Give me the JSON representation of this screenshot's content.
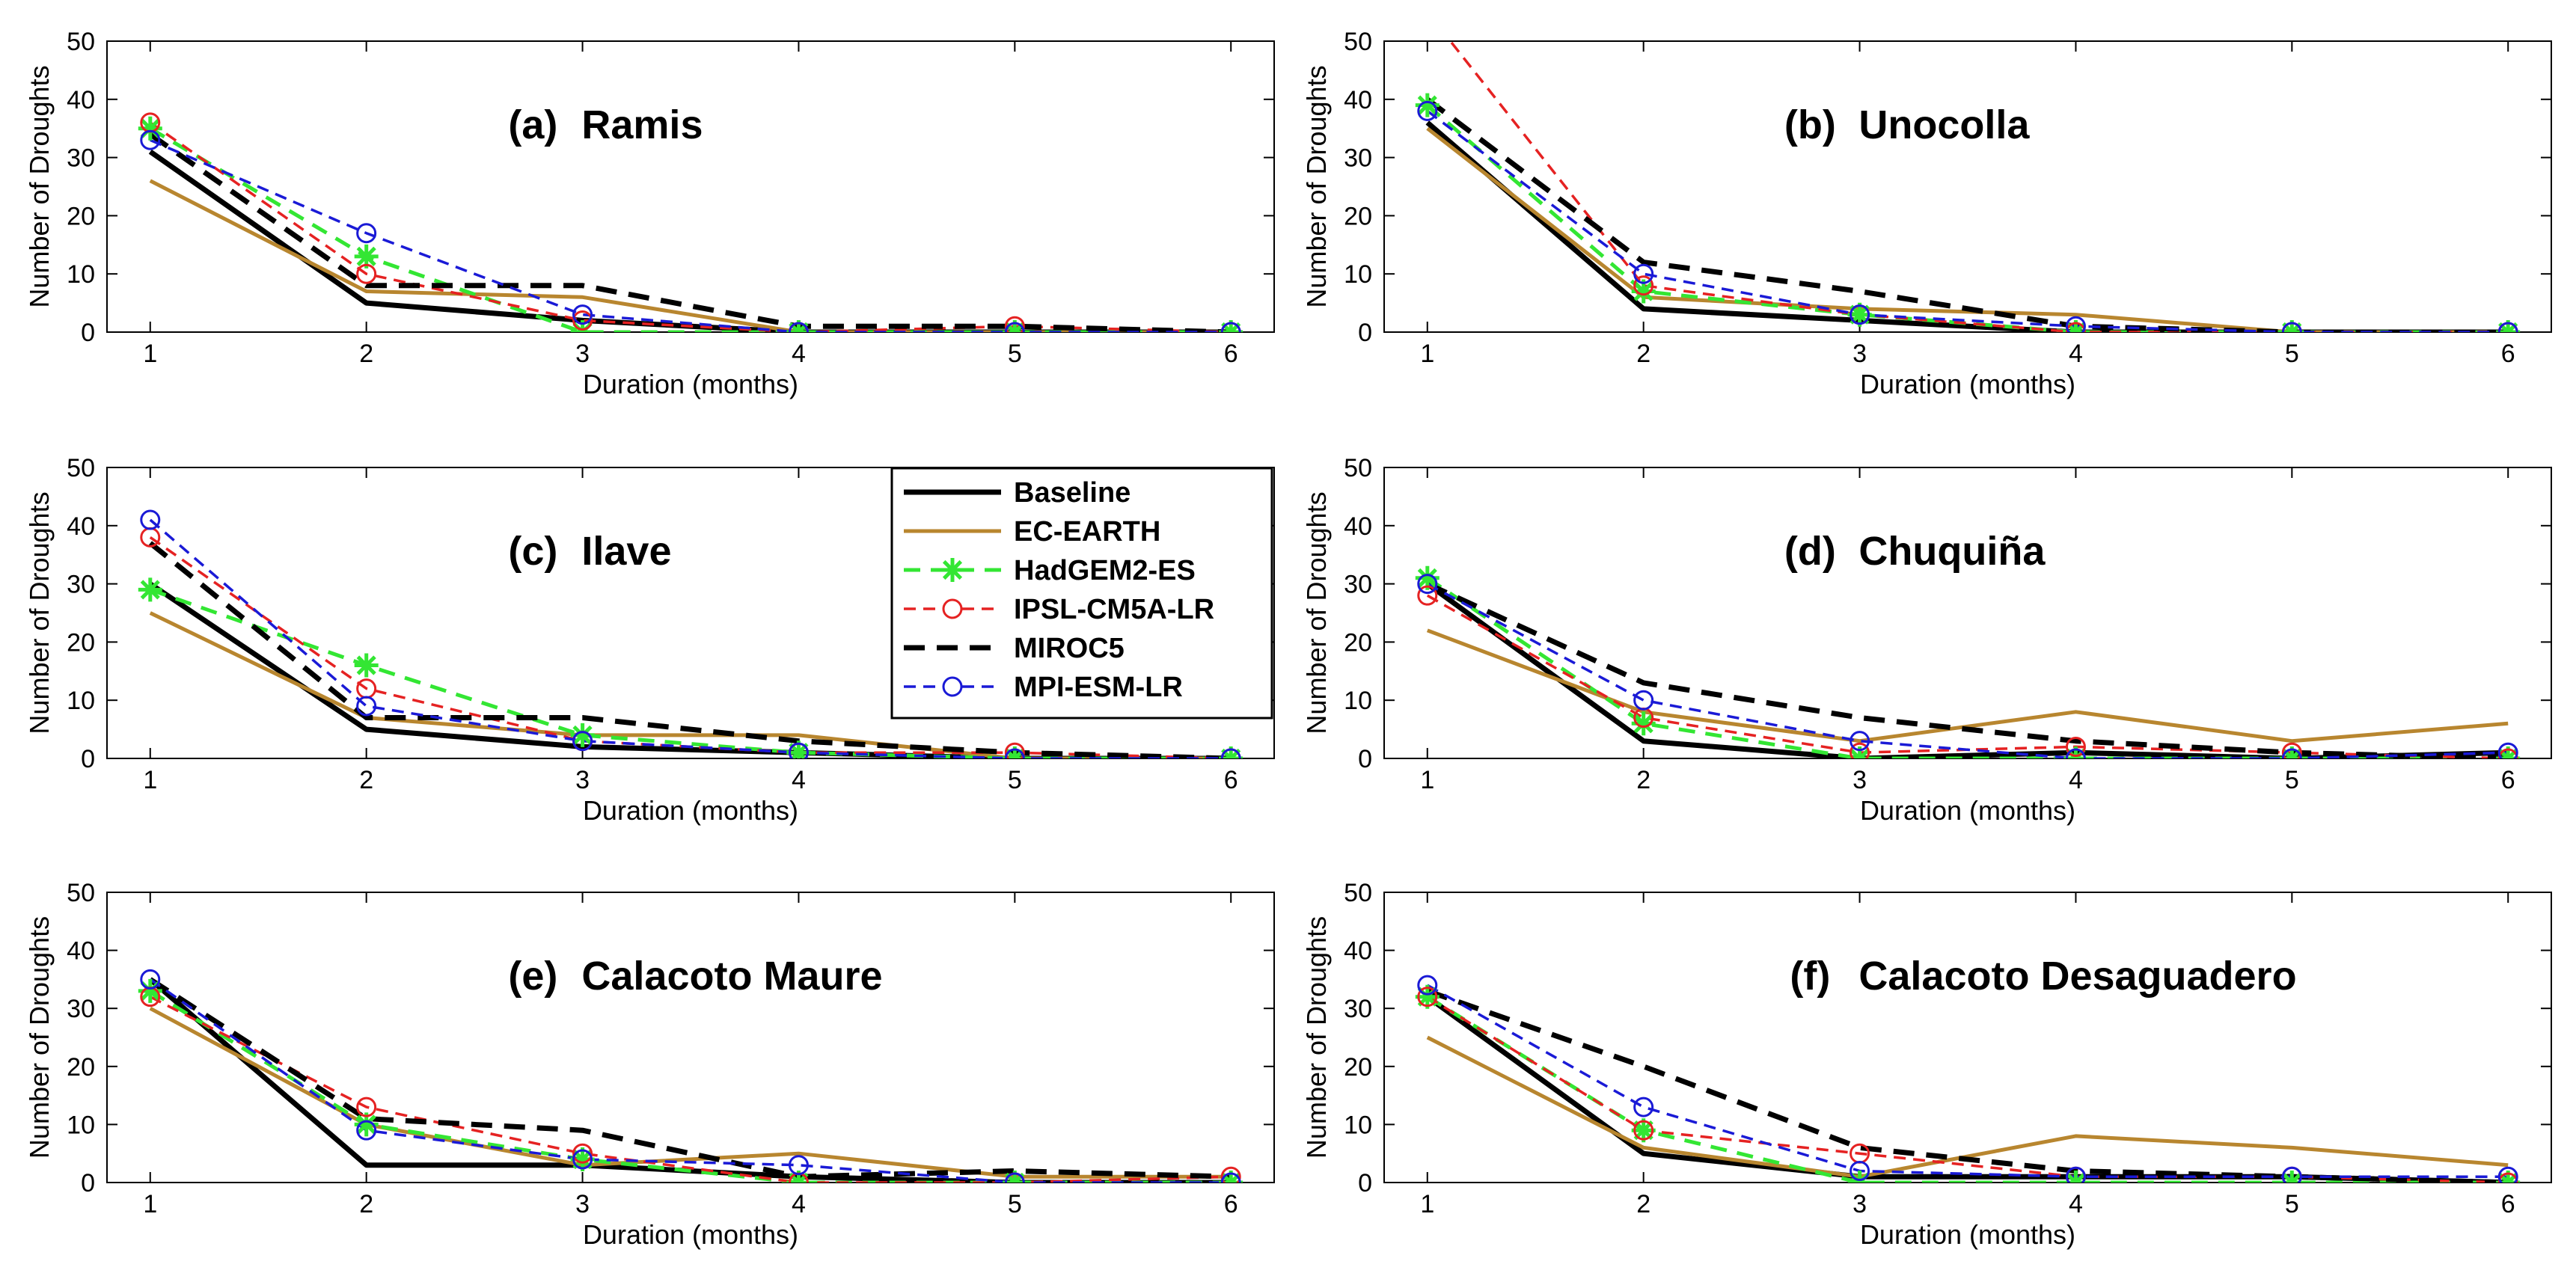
{
  "figure": {
    "legend_panel": 2,
    "legend_position": "top-right of panel (c)",
    "styles": {
      "Baseline": {
        "color": "#000000",
        "dash": "",
        "marker": "none",
        "width": 7
      },
      "EC-EARTH": {
        "color": "#b8862f",
        "dash": "",
        "marker": "none",
        "width": 5
      },
      "HadGEM2-ES": {
        "color": "#33e633",
        "dash": "22,14",
        "marker": "star",
        "width": 5
      },
      "IPSL-CM5A-LR": {
        "color": "#e52222",
        "dash": "16,10",
        "marker": "circle",
        "width": 3.5
      },
      "MIROC5": {
        "color": "#000000",
        "dash": "28,16",
        "marker": "none",
        "width": 7
      },
      "MPI-ESM-LR": {
        "color": "#1a1ad6",
        "dash": "16,10",
        "marker": "circle",
        "width": 3.5
      }
    }
  },
  "chart_data": [
    {
      "type": "line",
      "title_id": "(a)",
      "title": "Ramis",
      "xlabel": "Duration (months)",
      "ylabel": "Number of Droughts",
      "x": [
        1,
        2,
        3,
        4,
        5,
        6
      ],
      "xlim": [
        0.8,
        6.2
      ],
      "ylim": [
        0,
        50
      ],
      "xticks": [
        1,
        2,
        3,
        4,
        5,
        6
      ],
      "yticks": [
        0,
        10,
        20,
        30,
        40,
        50
      ],
      "series": [
        {
          "name": "Baseline",
          "values": [
            31,
            5,
            2,
            0,
            0,
            0
          ]
        },
        {
          "name": "EC-EARTH",
          "values": [
            26,
            7,
            6,
            0,
            0,
            0
          ]
        },
        {
          "name": "HadGEM2-ES",
          "values": [
            35,
            13,
            0,
            0,
            0,
            0
          ]
        },
        {
          "name": "IPSL-CM5A-LR",
          "values": [
            36,
            10,
            2,
            0,
            1,
            0
          ]
        },
        {
          "name": "MIROC5",
          "values": [
            34,
            8,
            8,
            1,
            1,
            0
          ]
        },
        {
          "name": "MPI-ESM-LR",
          "values": [
            33,
            17,
            3,
            0,
            0,
            0
          ]
        }
      ]
    },
    {
      "type": "line",
      "title_id": "(b)",
      "title": "Unocolla",
      "xlabel": "Duration (months)",
      "ylabel": "Number of Droughts",
      "x": [
        1,
        2,
        3,
        4,
        5,
        6
      ],
      "xlim": [
        0.8,
        6.2
      ],
      "ylim": [
        0,
        50
      ],
      "xticks": [
        1,
        2,
        3,
        4,
        5,
        6
      ],
      "yticks": [
        0,
        10,
        20,
        30,
        40,
        50
      ],
      "series": [
        {
          "name": "Baseline",
          "values": [
            36,
            4,
            2,
            0,
            0,
            0
          ]
        },
        {
          "name": "EC-EARTH",
          "values": [
            35,
            6,
            4,
            3,
            0,
            0
          ]
        },
        {
          "name": "HadGEM2-ES",
          "values": [
            39,
            7,
            3,
            0,
            0,
            0
          ]
        },
        {
          "name": "IPSL-CM5A-LR",
          "values": [
            55,
            8,
            3,
            0,
            0,
            0
          ]
        },
        {
          "name": "MIROC5",
          "values": [
            40,
            12,
            7,
            1,
            0,
            0
          ]
        },
        {
          "name": "MPI-ESM-LR",
          "values": [
            38,
            10,
            3,
            1,
            0,
            0
          ]
        }
      ]
    },
    {
      "type": "line",
      "title_id": "(c)",
      "title": "Ilave",
      "xlabel": "Duration (months)",
      "ylabel": "Number of Droughts",
      "x": [
        1,
        2,
        3,
        4,
        5,
        6
      ],
      "xlim": [
        0.8,
        6.2
      ],
      "ylim": [
        0,
        50
      ],
      "xticks": [
        1,
        2,
        3,
        4,
        5,
        6
      ],
      "yticks": [
        0,
        10,
        20,
        30,
        40,
        50
      ],
      "series": [
        {
          "name": "Baseline",
          "values": [
            30,
            5,
            2,
            1,
            0,
            0
          ]
        },
        {
          "name": "EC-EARTH",
          "values": [
            25,
            7,
            4,
            4,
            0,
            0
          ]
        },
        {
          "name": "HadGEM2-ES",
          "values": [
            29,
            16,
            4,
            1,
            0,
            0
          ]
        },
        {
          "name": "IPSL-CM5A-LR",
          "values": [
            38,
            12,
            3,
            1,
            1,
            0
          ]
        },
        {
          "name": "MIROC5",
          "values": [
            37,
            7,
            7,
            3,
            1,
            0
          ]
        },
        {
          "name": "MPI-ESM-LR",
          "values": [
            41,
            9,
            3,
            1,
            0,
            0
          ]
        }
      ]
    },
    {
      "type": "line",
      "title_id": "(d)",
      "title": "Chuquiña",
      "xlabel": "Duration (months)",
      "ylabel": "Number of Droughts",
      "x": [
        1,
        2,
        3,
        4,
        5,
        6
      ],
      "xlim": [
        0.8,
        6.2
      ],
      "ylim": [
        0,
        50
      ],
      "xticks": [
        1,
        2,
        3,
        4,
        5,
        6
      ],
      "yticks": [
        0,
        10,
        20,
        30,
        40,
        50
      ],
      "series": [
        {
          "name": "Baseline",
          "values": [
            30,
            3,
            0,
            1,
            0,
            1
          ]
        },
        {
          "name": "EC-EARTH",
          "values": [
            22,
            8,
            3,
            8,
            3,
            6
          ]
        },
        {
          "name": "HadGEM2-ES",
          "values": [
            31,
            6,
            0,
            0,
            0,
            0
          ]
        },
        {
          "name": "IPSL-CM5A-LR",
          "values": [
            28,
            7,
            1,
            2,
            1,
            0
          ]
        },
        {
          "name": "MIROC5",
          "values": [
            30,
            13,
            7,
            3,
            1,
            0
          ]
        },
        {
          "name": "MPI-ESM-LR",
          "values": [
            30,
            10,
            3,
            0,
            0,
            1
          ]
        }
      ]
    },
    {
      "type": "line",
      "title_id": "(e)",
      "title": "Calacoto Maure",
      "xlabel": "Duration (months)",
      "ylabel": "Number of Droughts",
      "x": [
        1,
        2,
        3,
        4,
        5,
        6
      ],
      "xlim": [
        0.8,
        6.2
      ],
      "ylim": [
        0,
        50
      ],
      "xticks": [
        1,
        2,
        3,
        4,
        5,
        6
      ],
      "yticks": [
        0,
        10,
        20,
        30,
        40,
        50
      ],
      "series": [
        {
          "name": "Baseline",
          "values": [
            35,
            3,
            3,
            1,
            0,
            0
          ]
        },
        {
          "name": "EC-EARTH",
          "values": [
            30,
            10,
            3,
            5,
            1,
            1
          ]
        },
        {
          "name": "HadGEM2-ES",
          "values": [
            33,
            10,
            4,
            0,
            0,
            0
          ]
        },
        {
          "name": "IPSL-CM5A-LR",
          "values": [
            32,
            13,
            5,
            0,
            0,
            1
          ]
        },
        {
          "name": "MIROC5",
          "values": [
            35,
            11,
            9,
            1,
            2,
            1
          ]
        },
        {
          "name": "MPI-ESM-LR",
          "values": [
            35,
            9,
            4,
            3,
            0,
            0
          ]
        }
      ]
    },
    {
      "type": "line",
      "title_id": "(f)",
      "title": "Calacoto Desaguadero",
      "xlabel": "Duration (months)",
      "ylabel": "Number of Droughts",
      "x": [
        1,
        2,
        3,
        4,
        5,
        6
      ],
      "xlim": [
        0.8,
        6.2
      ],
      "ylim": [
        0,
        50
      ],
      "xticks": [
        1,
        2,
        3,
        4,
        5,
        6
      ],
      "yticks": [
        0,
        10,
        20,
        30,
        40,
        50
      ],
      "series": [
        {
          "name": "Baseline",
          "values": [
            32,
            5,
            1,
            1,
            1,
            0
          ]
        },
        {
          "name": "EC-EARTH",
          "values": [
            25,
            6,
            1,
            8,
            6,
            3
          ]
        },
        {
          "name": "HadGEM2-ES",
          "values": [
            32,
            9,
            0,
            0,
            0,
            0
          ]
        },
        {
          "name": "IPSL-CM5A-LR",
          "values": [
            32,
            9,
            5,
            1,
            1,
            0
          ]
        },
        {
          "name": "MIROC5",
          "values": [
            33,
            20,
            6,
            2,
            1,
            0
          ]
        },
        {
          "name": "MPI-ESM-LR",
          "values": [
            34,
            13,
            2,
            1,
            1,
            1
          ]
        }
      ]
    }
  ]
}
